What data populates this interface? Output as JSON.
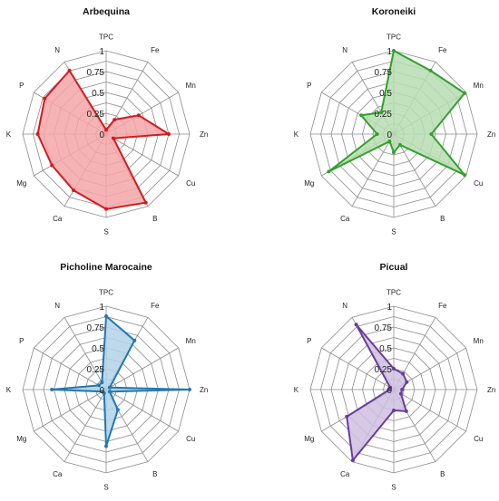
{
  "chart_data": [
    {
      "type": "radar",
      "title": "Arbequina",
      "axes": [
        "TPC",
        "Fe",
        "Mn",
        "Zn",
        "Cu",
        "B",
        "S",
        "Ca",
        "Mg",
        "K",
        "P",
        "N"
      ],
      "rlim": [
        0,
        1
      ],
      "ticks": [
        "0",
        "0.25",
        "0.5",
        "0.75",
        "1"
      ],
      "values": [
        0.05,
        0.2,
        0.45,
        0.75,
        0.1,
        0.95,
        0.9,
        0.78,
        0.75,
        0.82,
        0.85,
        0.88
      ],
      "line_color": "#d7191c",
      "fill_color": "#f4a6a8"
    },
    {
      "type": "radar",
      "title": "Koroneiki",
      "axes": [
        "TPC",
        "Fe",
        "Mn",
        "Zn",
        "Cu",
        "B",
        "S",
        "Ca",
        "Mg",
        "K",
        "P",
        "N"
      ],
      "rlim": [
        0,
        1
      ],
      "ticks": [
        "0",
        "0.25",
        "0.5",
        "0.75",
        "1"
      ],
      "values": [
        1.0,
        0.88,
        0.98,
        0.45,
        0.98,
        0.15,
        0.22,
        0.1,
        0.9,
        0.2,
        0.45,
        0.3
      ],
      "line_color": "#33a02c",
      "fill_color": "#b6ddb0"
    },
    {
      "type": "radar",
      "title": "Picholine Marocaine",
      "axes": [
        "TPC",
        "Fe",
        "Mn",
        "Zn",
        "Cu",
        "B",
        "S",
        "Ca",
        "Mg",
        "K",
        "P",
        "N"
      ],
      "rlim": [
        0,
        1
      ],
      "ticks": [
        "0",
        "0.25",
        "0.5",
        "0.75",
        "1"
      ],
      "values": [
        0.88,
        0.68,
        0.05,
        1.0,
        0.05,
        0.28,
        0.68,
        0.05,
        0.05,
        0.65,
        0.1,
        0.1
      ],
      "line_color": "#1f78b4",
      "fill_color": "#b3d2e8"
    },
    {
      "type": "radar",
      "title": "Picual",
      "axes": [
        "TPC",
        "Fe",
        "Mn",
        "Zn",
        "Cu",
        "B",
        "S",
        "Ca",
        "Mg",
        "K",
        "P",
        "N"
      ],
      "rlim": [
        0,
        1
      ],
      "ticks": [
        "0",
        "0.25",
        "0.5",
        "0.75",
        "1"
      ],
      "values": [
        0.25,
        0.22,
        0.18,
        0.1,
        0.1,
        0.3,
        0.25,
        0.98,
        0.65,
        0.05,
        0.05,
        0.9
      ],
      "line_color": "#6a3d9a",
      "fill_color": "#cfbfe0"
    }
  ]
}
